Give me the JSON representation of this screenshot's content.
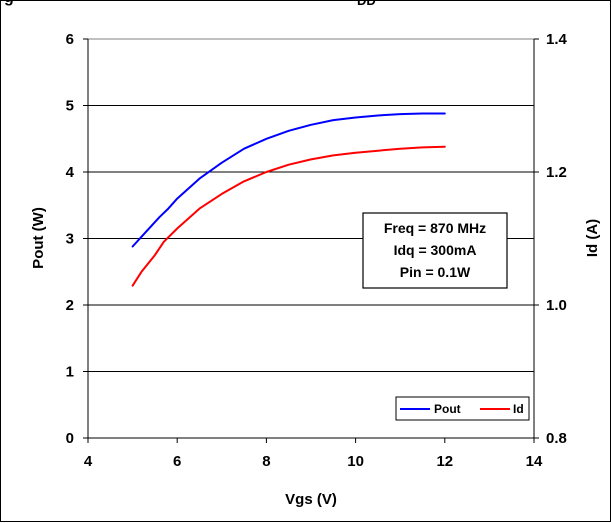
{
  "header": {
    "title_fragment": "g",
    "subscript_fragment": "DD"
  },
  "chart_data": {
    "type": "line",
    "title": "",
    "xlabel": "Vgs (V)",
    "ylabel": "Pout (W)",
    "y2label": "Id (A)",
    "xlim": [
      4,
      14
    ],
    "ylim": [
      0,
      6
    ],
    "y2lim": [
      0.8,
      1.4
    ],
    "xticks": [
      "4",
      "6",
      "8",
      "10",
      "12",
      "14"
    ],
    "yticks": [
      "0",
      "1",
      "2",
      "3",
      "4",
      "5",
      "6"
    ],
    "y2ticks": [
      "0.8",
      "1.0",
      "1.2",
      "1.4"
    ],
    "grid": "horizontal",
    "legend_position": "bottom-right",
    "annotation": [
      "Freq = 870 MHz",
      "Idq = 300mA",
      "Pin = 0.1W"
    ],
    "series": [
      {
        "name": "Pout",
        "axis": "left",
        "color": "#0000ff",
        "x": [
          5.0,
          5.3,
          5.6,
          5.8,
          6.0,
          6.5,
          7.0,
          7.5,
          8.0,
          8.5,
          9.0,
          9.5,
          10.0,
          10.5,
          11.0,
          11.5,
          12.0
        ],
        "y": [
          2.88,
          3.1,
          3.32,
          3.45,
          3.6,
          3.9,
          4.14,
          4.35,
          4.5,
          4.62,
          4.71,
          4.78,
          4.82,
          4.85,
          4.87,
          4.88,
          4.88
        ]
      },
      {
        "name": "Id",
        "axis": "right",
        "color": "#ff0000",
        "x": [
          5.0,
          5.2,
          5.5,
          5.7,
          6.0,
          6.5,
          7.0,
          7.5,
          8.0,
          8.5,
          9.0,
          9.5,
          10.0,
          10.5,
          11.0,
          11.5,
          12.0
        ],
        "y": [
          1.029,
          1.05,
          1.075,
          1.095,
          1.115,
          1.145,
          1.167,
          1.186,
          1.2,
          1.211,
          1.219,
          1.225,
          1.229,
          1.232,
          1.235,
          1.237,
          1.238
        ]
      }
    ]
  }
}
